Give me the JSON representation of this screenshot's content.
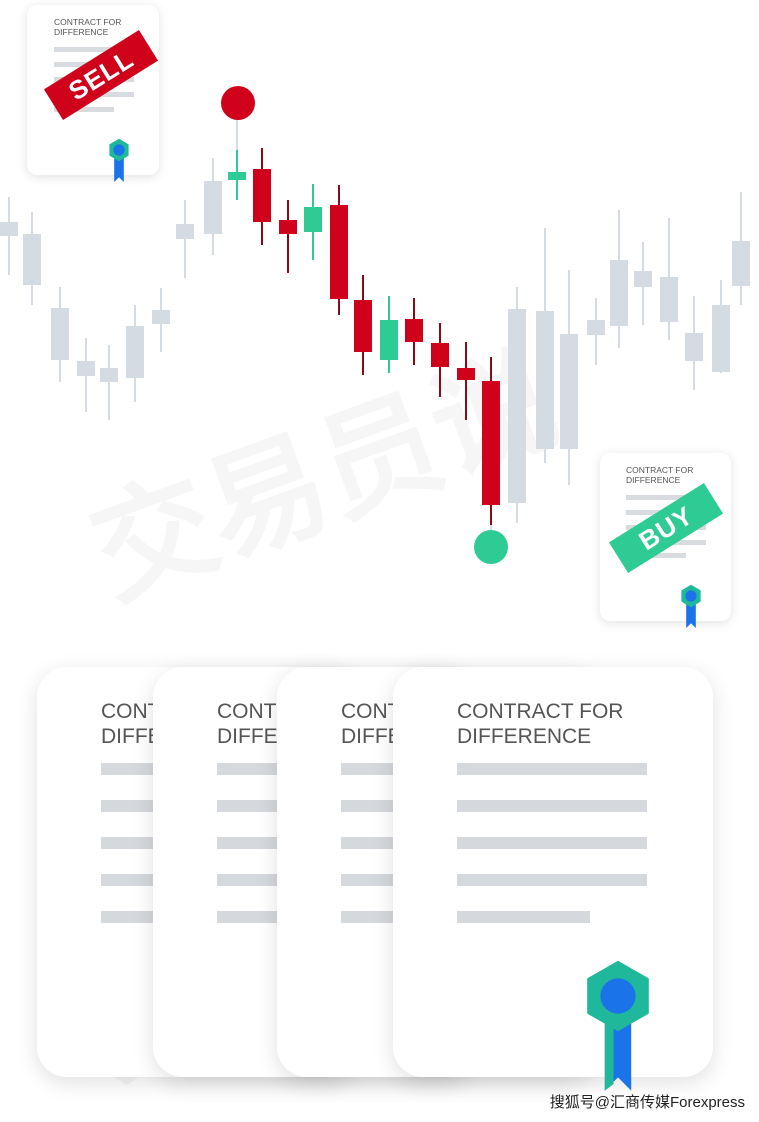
{
  "sell_card": {
    "title_line1": "CONTRACT FOR",
    "title_line2": "DIFFERENCE",
    "stamp": "SELL"
  },
  "buy_card": {
    "title_line1": "CONTRACT FOR",
    "title_line2": "DIFFERENCE",
    "stamp": "BUY"
  },
  "contract_cards": [
    {
      "title_line1": "CONTRACT FOR",
      "title_line2": "DIFFERENCE"
    },
    {
      "title_line1": "CONTRACT FOR",
      "title_line2": "DIFFERENCE"
    },
    {
      "title_line1": "CONTRACT FOR",
      "title_line2": "DIFFERENCE"
    },
    {
      "title_line1": "CONTRACT FOR",
      "title_line2": "DIFFERENCE"
    }
  ],
  "watermark": "交易员说",
  "credit": "搜狐号@汇商传媒Forexpress",
  "colors": {
    "bearish": "#d0021b",
    "bullish": "#2ecc94",
    "neutral": "#d5dbe3",
    "ribbon_teal": "#1fb89a",
    "ribbon_blue": "#1a73e8"
  }
}
